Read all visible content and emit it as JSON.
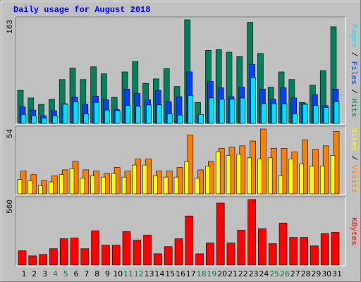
{
  "chart_data": {
    "type": "bar",
    "title": "Daily usage for August 2018",
    "categories": [
      "1",
      "2",
      "3",
      "4",
      "5",
      "6",
      "7",
      "8",
      "9",
      "10",
      "11",
      "12",
      "13",
      "14",
      "15",
      "16",
      "17",
      "18",
      "19",
      "20",
      "21",
      "22",
      "23",
      "24",
      "25",
      "26",
      "27",
      "28",
      "29",
      "30",
      "31"
    ],
    "category_color": "#000000",
    "weekend_color": "#008040",
    "weekends": [
      3,
      4,
      10,
      11,
      17,
      18,
      24,
      25
    ],
    "legend_separator": " / ",
    "panels": [
      {
        "ylim": [
          0,
          163
        ],
        "yticks": [
          163
        ],
        "series": [
          {
            "name": "Hits",
            "color": "#00805c",
            "values": [
              52,
              40,
              30,
              38,
              69,
              87,
              69,
              89,
              78,
              41,
              81,
              97,
              63,
              70,
              86,
              58,
              163,
              33,
              115,
              116,
              112,
              105,
              159,
              110,
              57,
              81,
              69,
              33,
              60,
              83,
              152
            ]
          },
          {
            "name": "Files",
            "color": "#0040ff",
            "values": [
              26,
              21,
              12,
              20,
              31,
              41,
              30,
              43,
              37,
              22,
              54,
              47,
              37,
              52,
              34,
              42,
              81,
              12,
              66,
              56,
              42,
              57,
              93,
              54,
              38,
              56,
              40,
              31,
              45,
              28,
              54
            ]
          },
          {
            "name": "Pages",
            "color": "#00e0ff",
            "values": [
              14,
              12,
              8,
              12,
              30,
              34,
              15,
              33,
              21,
              20,
              28,
              27,
              29,
              29,
              15,
              13,
              44,
              14,
              40,
              38,
              38,
              40,
              72,
              31,
              31,
              31,
              15,
              30,
              28,
              25,
              34
            ]
          }
        ]
      },
      {
        "ylim": [
          0,
          54
        ],
        "yticks": [
          54
        ],
        "series": [
          {
            "name": "Visits",
            "color": "#ff8000",
            "values": [
              19,
              16,
              11,
              15,
              20,
              27,
              20,
              19,
              17,
              22,
              19,
              29,
              29,
              19,
              19,
              22,
              49,
              20,
              27,
              38,
              39,
              40,
              44,
              54,
              38,
              38,
              35,
              45,
              37,
              40,
              52
            ]
          },
          {
            "name": "Sites",
            "color": "#ffff00",
            "values": [
              12,
              11,
              7,
              10,
              16,
              21,
              13,
              15,
              14,
              17,
              14,
              24,
              24,
              15,
              14,
              14,
              27,
              13,
              23,
              35,
              32,
              33,
              30,
              29,
              30,
              15,
              29,
              25,
              23,
              23,
              32
            ]
          }
        ]
      },
      {
        "ylim": [
          0,
          560
        ],
        "yticks": [
          560
        ],
        "series": [
          {
            "name": "KBytes",
            "color": "#ff0000",
            "values": [
              122,
              79,
              91,
              140,
              225,
              231,
              140,
              292,
              170,
              170,
              286,
              213,
              256,
              97,
              158,
              225,
              420,
              97,
              189,
              530,
              189,
              298,
              560,
              310,
              183,
              359,
              237,
              237,
              164,
              268,
              280
            ]
          }
        ]
      }
    ]
  }
}
